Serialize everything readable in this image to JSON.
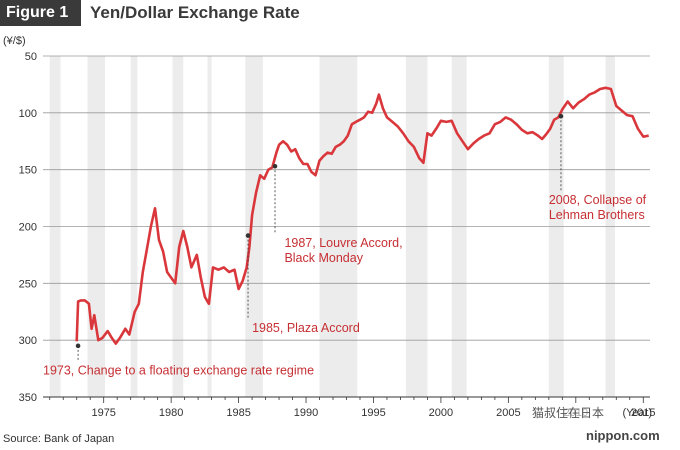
{
  "figure": {
    "tag": "Figure 1",
    "title": "Yen/Dollar Exchange Rate",
    "source": "Source: Bank of Japan",
    "watermark": "猫叔住在日本",
    "brand": "nippon.com"
  },
  "chart_data": {
    "type": "line",
    "ylabel": "(¥/$)",
    "xunit": "(Year)",
    "ylim": [
      50,
      350
    ],
    "y_inverted": true,
    "xlim": [
      1970.5,
      2015.5
    ],
    "yticks": [
      50,
      100,
      150,
      200,
      250,
      300,
      350
    ],
    "xticks": [
      {
        "value": 1975,
        "label": "1975"
      },
      {
        "value": 1980,
        "label": "1980"
      },
      {
        "value": 1985,
        "label": "1985"
      },
      {
        "value": 1990,
        "label": "1990"
      },
      {
        "value": 1995,
        "label": "1995"
      },
      {
        "value": 2000,
        "label": "2000"
      },
      {
        "value": 2005,
        "label": "2005"
      },
      {
        "value": 2010,
        "label": "2010"
      },
      {
        "value": 2015,
        "label": "2015"
      }
    ],
    "grid": "horizontal",
    "line_color": "#d9373b",
    "shaded_periods": [
      [
        1971.0,
        1971.8
      ],
      [
        1973.8,
        1975.1
      ],
      [
        1977.0,
        1977.5
      ],
      [
        1980.1,
        1980.9
      ],
      [
        1982.7,
        1983.0
      ],
      [
        1985.5,
        1986.8
      ],
      [
        1991.0,
        1993.8
      ],
      [
        1997.4,
        1999.0
      ],
      [
        2000.8,
        2001.9
      ],
      [
        2008.0,
        2009.1
      ],
      [
        2012.2,
        2012.9
      ]
    ],
    "series": [
      {
        "name": "",
        "x": [
          1973.0,
          1973.1,
          1973.3,
          1973.6,
          1973.9,
          1974.1,
          1974.3,
          1974.6,
          1974.9,
          1975.3,
          1975.6,
          1975.9,
          1976.2,
          1976.6,
          1976.9,
          1977.3,
          1977.6,
          1977.9,
          1978.2,
          1978.5,
          1978.8,
          1979.1,
          1979.4,
          1979.7,
          1980.0,
          1980.3,
          1980.6,
          1980.9,
          1981.2,
          1981.5,
          1981.9,
          1982.2,
          1982.5,
          1982.8,
          1983.1,
          1983.5,
          1983.9,
          1984.3,
          1984.7,
          1985.0,
          1985.3,
          1985.6,
          1985.8,
          1986.0,
          1986.3,
          1986.6,
          1986.9,
          1987.2,
          1987.5,
          1987.8,
          1988.0,
          1988.3,
          1988.6,
          1988.9,
          1989.2,
          1989.5,
          1989.8,
          1990.1,
          1990.4,
          1990.7,
          1991.0,
          1991.3,
          1991.6,
          1991.9,
          1992.2,
          1992.5,
          1992.8,
          1993.1,
          1993.4,
          1993.7,
          1994.0,
          1994.3,
          1994.6,
          1994.9,
          1995.2,
          1995.4,
          1995.7,
          1996.0,
          1996.4,
          1996.8,
          1997.2,
          1997.6,
          1998.0,
          1998.4,
          1998.7,
          1999.0,
          1999.3,
          1999.7,
          2000.0,
          2000.4,
          2000.8,
          2001.2,
          2001.6,
          2002.0,
          2002.4,
          2002.8,
          2003.2,
          2003.6,
          2004.0,
          2004.4,
          2004.8,
          2005.2,
          2005.6,
          2006.0,
          2006.4,
          2006.8,
          2007.2,
          2007.5,
          2007.8,
          2008.1,
          2008.4,
          2008.7,
          2009.0,
          2009.4,
          2009.8,
          2010.2,
          2010.6,
          2011.0,
          2011.4,
          2011.8,
          2012.2,
          2012.6,
          2013.0,
          2013.4,
          2013.8,
          2014.2,
          2014.6,
          2015.0,
          2015.4
        ],
        "y": [
          301,
          266,
          265,
          265,
          268,
          290,
          278,
          300,
          298,
          292,
          298,
          303,
          298,
          290,
          295,
          275,
          268,
          240,
          220,
          200,
          184,
          212,
          222,
          240,
          245,
          250,
          218,
          204,
          218,
          236,
          225,
          245,
          262,
          268,
          236,
          238,
          236,
          240,
          238,
          255,
          248,
          236,
          218,
          190,
          170,
          155,
          158,
          150,
          148,
          135,
          128,
          125,
          128,
          134,
          132,
          140,
          145,
          145,
          152,
          155,
          142,
          138,
          135,
          136,
          130,
          128,
          125,
          120,
          110,
          108,
          106,
          104,
          99,
          100,
          92,
          84,
          96,
          104,
          108,
          112,
          118,
          125,
          130,
          140,
          144,
          118,
          120,
          113,
          107,
          108,
          107,
          118,
          125,
          132,
          127,
          123,
          120,
          118,
          110,
          108,
          104,
          106,
          110,
          115,
          118,
          117,
          120,
          123,
          119,
          114,
          106,
          104,
          97,
          90,
          96,
          91,
          88,
          84,
          82,
          79,
          78,
          79,
          94,
          98,
          102,
          103,
          114,
          121,
          120
        ],
        "line_color": "#d9373b"
      }
    ],
    "annotations": [
      {
        "x": 1973.1,
        "y": 305,
        "text": [
          "1973, Change to a floating exchange rate regime"
        ],
        "label_x": 1970.5,
        "label_y": 330
      },
      {
        "x": 1985.7,
        "y": 208,
        "text": [
          "1985, Plaza Accord"
        ],
        "label_x": 1986.0,
        "label_y": 293
      },
      {
        "x": 1987.7,
        "y": 147,
        "text": [
          "1987, Louvre Accord,",
          "Black Monday"
        ],
        "label_x": 1988.4,
        "label_y": 218
      },
      {
        "x": 2008.9,
        "y": 103,
        "text": [
          "2008, Collapse of",
          "Lehman Brothers"
        ],
        "label_x": 2008.0,
        "label_y": 180
      }
    ]
  }
}
